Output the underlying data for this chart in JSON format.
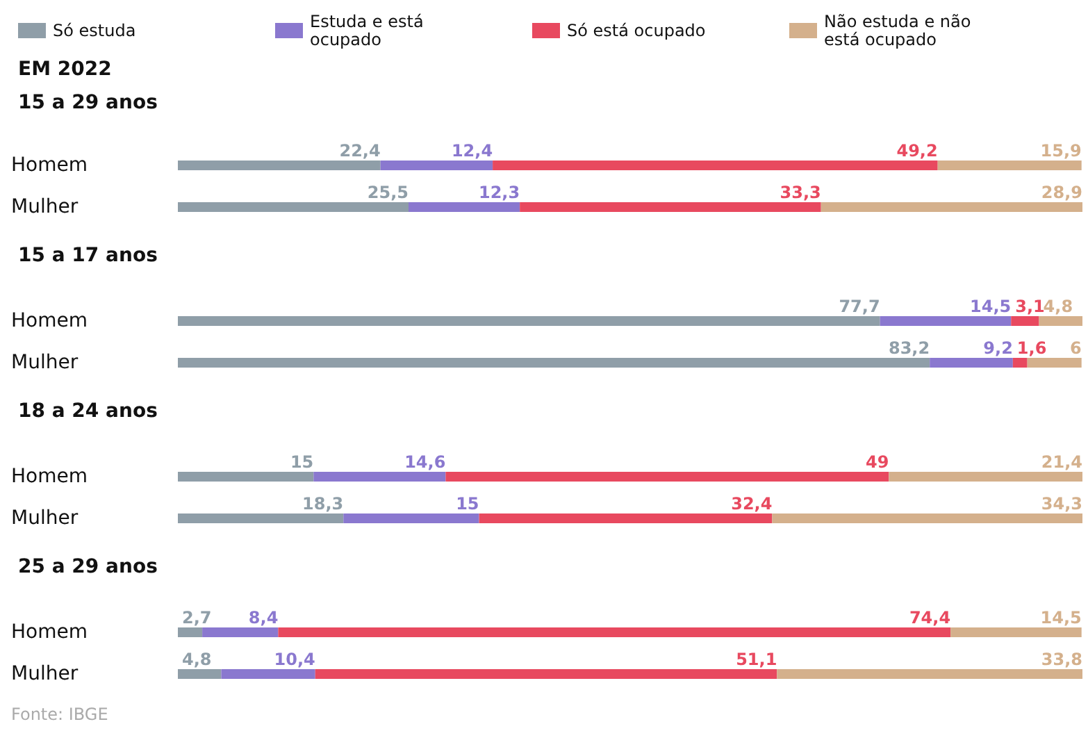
{
  "chart_data": [
    {
      "type": "bar",
      "orientation": "horizontal",
      "stacked": true,
      "title": "EM 2022",
      "subtitle": "15 a 29 anos",
      "categories": [
        "Homem",
        "Mulher"
      ],
      "legend": "top left",
      "series": [
        {
          "name": "Só estuda",
          "color": "#8f9ea8",
          "values": [
            22.4,
            25.5
          ],
          "value_labels": [
            "22,4",
            "25,5"
          ]
        },
        {
          "name": "Estuda e está ocupado",
          "color": "#8a78cf",
          "values": [
            12.4,
            12.3
          ],
          "value_labels": [
            "12,4",
            "12,3"
          ]
        },
        {
          "name": "Só está ocupado",
          "color": "#e8495f",
          "values": [
            49.2,
            33.3
          ],
          "value_labels": [
            "49,2",
            "33,3"
          ]
        },
        {
          "name": "Não estuda e não está ocupado",
          "color": "#d4b08c",
          "values": [
            15.9,
            28.9
          ],
          "value_labels": [
            "15,9",
            "28,9"
          ]
        }
      ]
    },
    {
      "type": "bar",
      "orientation": "horizontal",
      "stacked": true,
      "title": "15 a 17 anos",
      "categories": [
        "Homem",
        "Mulher"
      ],
      "series": [
        {
          "name": "Só estuda",
          "color": "#8f9ea8",
          "values": [
            77.7,
            83.2
          ],
          "value_labels": [
            "77,7",
            "83,2"
          ]
        },
        {
          "name": "Estuda e está ocupado",
          "color": "#8a78cf",
          "values": [
            14.5,
            9.2
          ],
          "value_labels": [
            "14,5",
            "9,2"
          ]
        },
        {
          "name": "Só está ocupado",
          "color": "#e8495f",
          "values": [
            3.1,
            1.6
          ],
          "value_labels": [
            "3,1",
            "1,6"
          ]
        },
        {
          "name": "Não estuda e não está ocupado",
          "color": "#d4b08c",
          "values": [
            4.8,
            6
          ],
          "value_labels": [
            "4,8",
            "6"
          ]
        }
      ]
    },
    {
      "type": "bar",
      "orientation": "horizontal",
      "stacked": true,
      "title": "18 a 24 anos",
      "categories": [
        "Homem",
        "Mulher"
      ],
      "series": [
        {
          "name": "Só estuda",
          "color": "#8f9ea8",
          "values": [
            15,
            18.3
          ],
          "value_labels": [
            "15",
            "18,3"
          ]
        },
        {
          "name": "Estuda e está ocupado",
          "color": "#8a78cf",
          "values": [
            14.6,
            15
          ],
          "value_labels": [
            "14,6",
            "15"
          ]
        },
        {
          "name": "Só está ocupado",
          "color": "#e8495f",
          "values": [
            49,
            32.4
          ],
          "value_labels": [
            "49",
            "32,4"
          ]
        },
        {
          "name": "Não estuda e não está ocupado",
          "color": "#d4b08c",
          "values": [
            21.4,
            34.3
          ],
          "value_labels": [
            "21,4",
            "34,3"
          ]
        }
      ]
    },
    {
      "type": "bar",
      "orientation": "horizontal",
      "stacked": true,
      "title": "25 a 29 anos",
      "categories": [
        "Homem",
        "Mulher"
      ],
      "annotations": [
        "Fonte: IBGE"
      ],
      "series": [
        {
          "name": "Só estuda",
          "color": "#8f9ea8",
          "values": [
            2.7,
            4.8
          ],
          "value_labels": [
            "2,7",
            "4,8"
          ]
        },
        {
          "name": "Estuda e está ocupado",
          "color": "#8a78cf",
          "values": [
            8.4,
            10.4
          ],
          "value_labels": [
            "8,4",
            "10,4"
          ]
        },
        {
          "name": "Só está ocupado",
          "color": "#e8495f",
          "values": [
            74.4,
            51.1
          ],
          "value_labels": [
            "74,4",
            "51,1"
          ]
        },
        {
          "name": "Não estuda e não está ocupado",
          "color": "#d4b08c",
          "values": [
            14.5,
            33.8
          ],
          "value_labels": [
            "14,5",
            "33,8"
          ]
        }
      ]
    }
  ]
}
